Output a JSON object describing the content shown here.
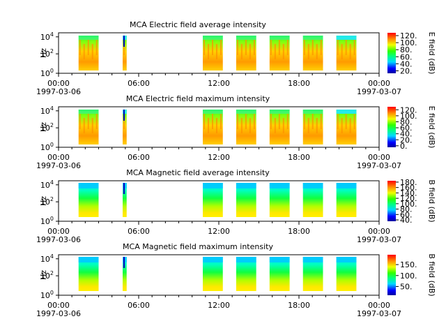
{
  "chart_data": [
    {
      "type": "heatmap",
      "title": "MCA  Electric field average intensity",
      "ylabel": "Hz",
      "y_ticks": [
        "0",
        "2",
        "4"
      ],
      "x_ticks": [
        "00:00",
        "06:00",
        "12:00",
        "18:00",
        "00:00"
      ],
      "x_dates": [
        "1997-03-06",
        "1997-03-07"
      ],
      "colorbar_label": "E field (dB)",
      "colorbar_ticks": [
        "20.",
        "40.",
        "60.",
        "80.",
        "100.",
        "120."
      ],
      "colorbar_range": [
        13,
        128
      ],
      "field_style": "electric",
      "blocks_hours": [
        [
          1.5,
          3.0
        ],
        [
          4.8,
          5.1
        ],
        [
          10.8,
          12.3
        ],
        [
          13.3,
          14.8
        ],
        [
          15.8,
          17.3
        ],
        [
          18.3,
          19.8
        ],
        [
          20.8,
          22.3
        ]
      ]
    },
    {
      "type": "heatmap",
      "title": "MCA  Electric field maximum intensity",
      "ylabel": "Hz",
      "y_ticks": [
        "0",
        "2",
        "4"
      ],
      "x_ticks": [
        "00:00",
        "06:00",
        "12:00",
        "18:00",
        "00:00"
      ],
      "x_dates": [
        "1997-03-06",
        "1997-03-07"
      ],
      "colorbar_label": "E field (dB)",
      "colorbar_ticks": [
        "0.",
        "20.",
        "40.",
        "60.",
        "80.",
        "100.",
        "120."
      ],
      "colorbar_range": [
        -5,
        130
      ],
      "field_style": "electric",
      "blocks_hours": [
        [
          1.5,
          3.0
        ],
        [
          4.8,
          5.1
        ],
        [
          10.8,
          12.3
        ],
        [
          13.3,
          14.8
        ],
        [
          15.8,
          17.3
        ],
        [
          18.3,
          19.8
        ],
        [
          20.8,
          22.3
        ]
      ]
    },
    {
      "type": "heatmap",
      "title": "MCA  Magnetic field average intensity",
      "ylabel": "Hz",
      "y_ticks": [
        "0",
        "2",
        "4"
      ],
      "x_ticks": [
        "00:00",
        "06:00",
        "12:00",
        "18:00",
        "00:00"
      ],
      "x_dates": [
        "1997-03-06",
        "1997-03-07"
      ],
      "colorbar_label": "B field (dB)",
      "colorbar_ticks": [
        "40.",
        "60.",
        "80.",
        "100.",
        "120.",
        "140.",
        "160.",
        "180."
      ],
      "colorbar_range": [
        35,
        185
      ],
      "field_style": "magnetic",
      "blocks_hours": [
        [
          1.5,
          3.0
        ],
        [
          4.8,
          5.1
        ],
        [
          10.8,
          12.3
        ],
        [
          13.3,
          14.8
        ],
        [
          15.8,
          17.3
        ],
        [
          18.3,
          19.8
        ],
        [
          20.8,
          22.3
        ]
      ]
    },
    {
      "type": "heatmap",
      "title": "MCA  Magnetic field maximum intensity",
      "ylabel": "Hz",
      "y_ticks": [
        "0",
        "2",
        "4"
      ],
      "x_ticks": [
        "00:00",
        "06:00",
        "12:00",
        "18:00",
        "00:00"
      ],
      "x_dates": [
        "1997-03-06",
        "1997-03-07"
      ],
      "colorbar_label": "B field (dB)",
      "colorbar_ticks": [
        "50.",
        "100.",
        "150."
      ],
      "colorbar_range": [
        10,
        195
      ],
      "field_style": "magnetic",
      "blocks_hours": [
        [
          1.5,
          3.0
        ],
        [
          4.8,
          5.1
        ],
        [
          10.8,
          12.3
        ],
        [
          13.3,
          14.8
        ],
        [
          15.8,
          17.3
        ],
        [
          18.3,
          19.8
        ],
        [
          20.8,
          22.3
        ]
      ]
    }
  ]
}
